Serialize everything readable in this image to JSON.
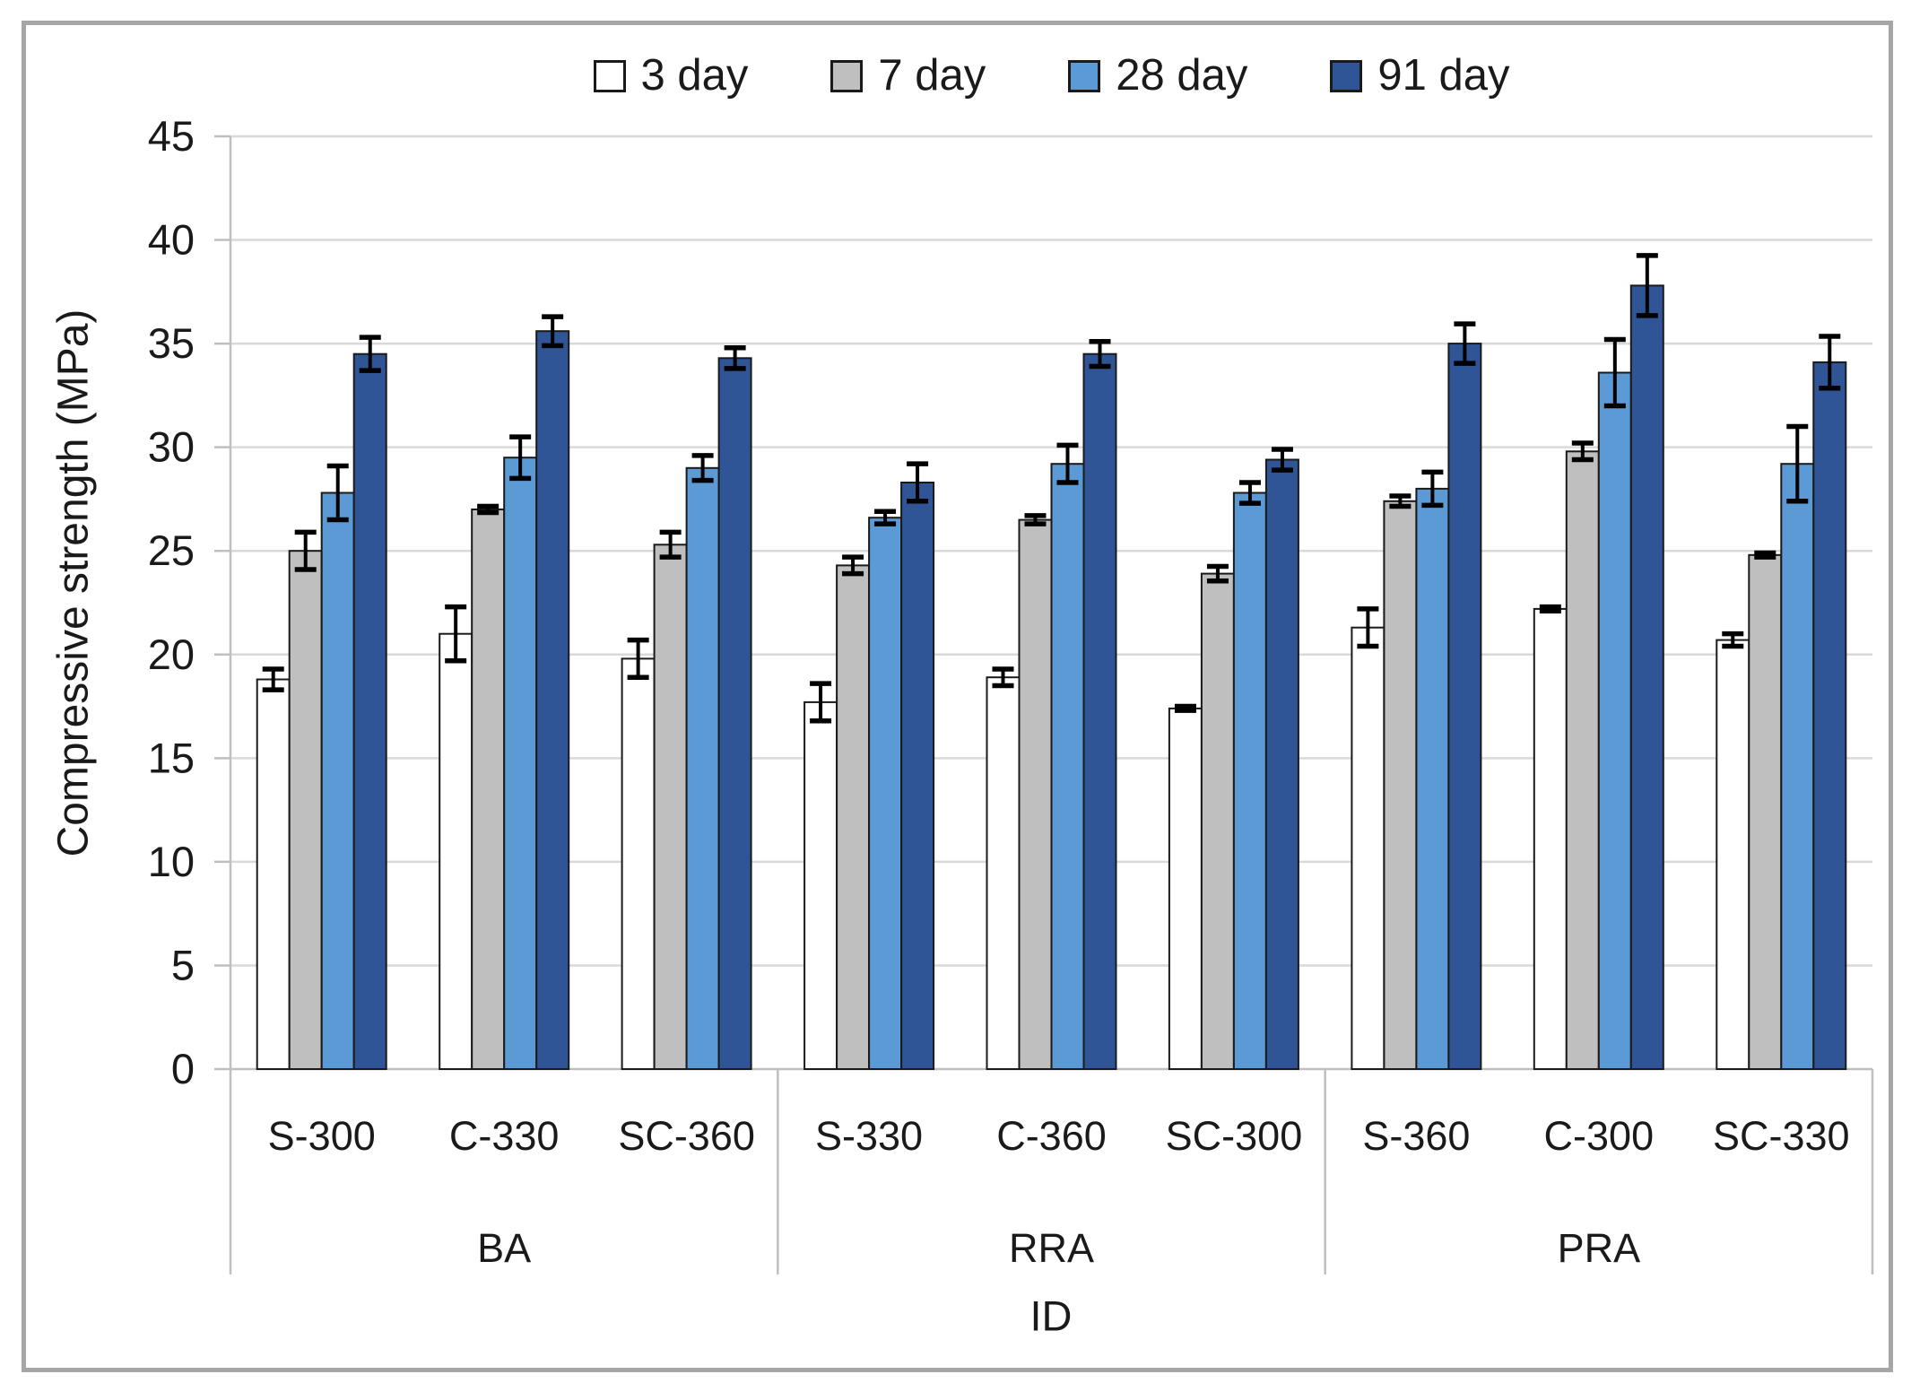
{
  "chart_data": {
    "type": "bar",
    "ylabel": "Compressive strength (MPa)",
    "xlabel": "ID",
    "ylim": [
      0,
      45
    ],
    "y_ticks": [
      0,
      5,
      10,
      15,
      20,
      25,
      30,
      35,
      40,
      45
    ],
    "grid": true,
    "legend_position": "top",
    "error_bars": true,
    "groups": [
      {
        "label": "BA",
        "categories": [
          "S-300",
          "C-330",
          "SC-360"
        ]
      },
      {
        "label": "RRA",
        "categories": [
          "S-330",
          "C-360",
          "SC-300"
        ]
      },
      {
        "label": "PRA",
        "categories": [
          "S-360",
          "C-300",
          "SC-330"
        ]
      }
    ],
    "categories": [
      "S-300",
      "C-330",
      "SC-360",
      "S-330",
      "C-360",
      "SC-300",
      "S-360",
      "C-300",
      "SC-330"
    ],
    "series": [
      {
        "name": "3 day",
        "fill": "#FFFFFF",
        "values": [
          18.8,
          21.0,
          19.8,
          17.7,
          18.9,
          17.4,
          21.3,
          22.2,
          20.7
        ],
        "errors": [
          0.5,
          1.3,
          0.9,
          0.9,
          0.4,
          0.1,
          0.9,
          0.1,
          0.3
        ]
      },
      {
        "name": "7 day",
        "fill": "#BFBFBF",
        "values": [
          25.0,
          27.0,
          25.3,
          24.3,
          26.5,
          23.9,
          27.4,
          29.8,
          24.8
        ],
        "errors": [
          0.9,
          0.15,
          0.6,
          0.4,
          0.2,
          0.35,
          0.25,
          0.4,
          0.1
        ]
      },
      {
        "name": "28 day",
        "fill": "#5B9AD5",
        "values": [
          27.8,
          29.5,
          29.0,
          26.6,
          29.2,
          27.8,
          28.0,
          33.6,
          29.2
        ],
        "errors": [
          1.3,
          1.0,
          0.6,
          0.3,
          0.9,
          0.5,
          0.8,
          1.6,
          1.8
        ]
      },
      {
        "name": "91 day",
        "fill": "#2F5596",
        "values": [
          34.5,
          35.6,
          34.3,
          28.3,
          34.5,
          29.4,
          35.0,
          37.8,
          34.1
        ],
        "errors": [
          0.8,
          0.7,
          0.5,
          0.9,
          0.6,
          0.5,
          0.95,
          1.45,
          1.25
        ]
      }
    ],
    "colors": {
      "grid": "#D9D9D9",
      "axis": "#BFBFBF",
      "bar_border": "#1a1a1a",
      "error": "#000000",
      "text": "#1a1a1a",
      "frame_border": "#A6A6A6"
    }
  }
}
